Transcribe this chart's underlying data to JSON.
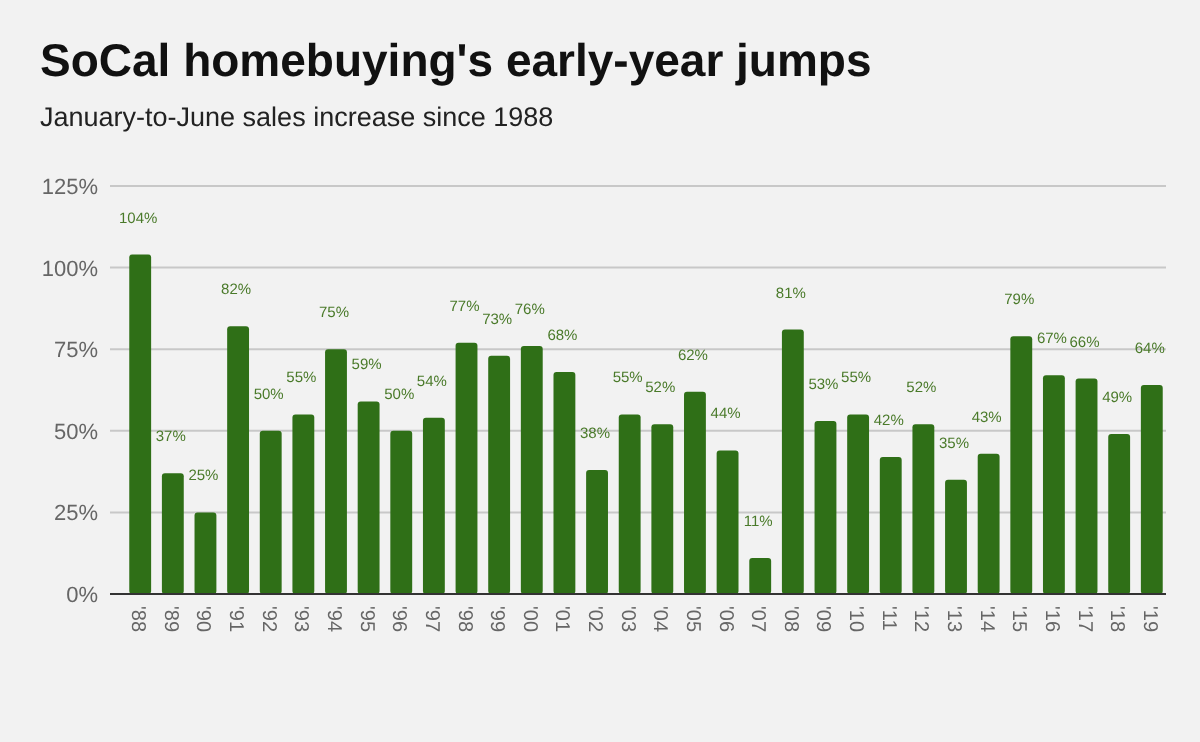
{
  "chart_data": {
    "type": "bar",
    "title": "SoCal homebuying's early-year jumps",
    "subtitle": "January-to-June sales increase since 1988",
    "categories": [
      "'88",
      "'89",
      "'90",
      "'91",
      "'92",
      "'93",
      "'94",
      "'95",
      "'96",
      "'97",
      "'98",
      "'99",
      "'00",
      "'01",
      "'02",
      "'03",
      "'04",
      "'05",
      "'06",
      "'07",
      "'08",
      "'09",
      "'10",
      "'11",
      "'12",
      "'13",
      "'14",
      "'15",
      "'16",
      "'17",
      "'18",
      "'19"
    ],
    "values": [
      104,
      37,
      25,
      82,
      50,
      55,
      75,
      59,
      50,
      54,
      77,
      73,
      76,
      68,
      38,
      55,
      52,
      62,
      44,
      11,
      81,
      53,
      55,
      42,
      52,
      35,
      43,
      79,
      67,
      66,
      49,
      64
    ],
    "value_labels": [
      "104%",
      "37%",
      "25%",
      "82%",
      "50%",
      "55%",
      "75%",
      "59%",
      "50%",
      "54%",
      "77%",
      "73%",
      "76%",
      "68%",
      "38%",
      "55%",
      "52%",
      "62%",
      "44%",
      "11%",
      "81%",
      "53%",
      "55%",
      "42%",
      "52%",
      "35%",
      "43%",
      "79%",
      "67%",
      "66%",
      "49%",
      "64%"
    ],
    "color": "#2f6f17",
    "ylim": [
      0,
      125
    ],
    "yticks": [
      {
        "value": 0,
        "label": "0%"
      },
      {
        "value": 25,
        "label": "25%"
      },
      {
        "value": 50,
        "label": "50%"
      },
      {
        "value": 75,
        "label": "75%"
      },
      {
        "value": 100,
        "label": "100%"
      },
      {
        "value": 125,
        "label": "125%"
      }
    ],
    "grid": "y"
  }
}
